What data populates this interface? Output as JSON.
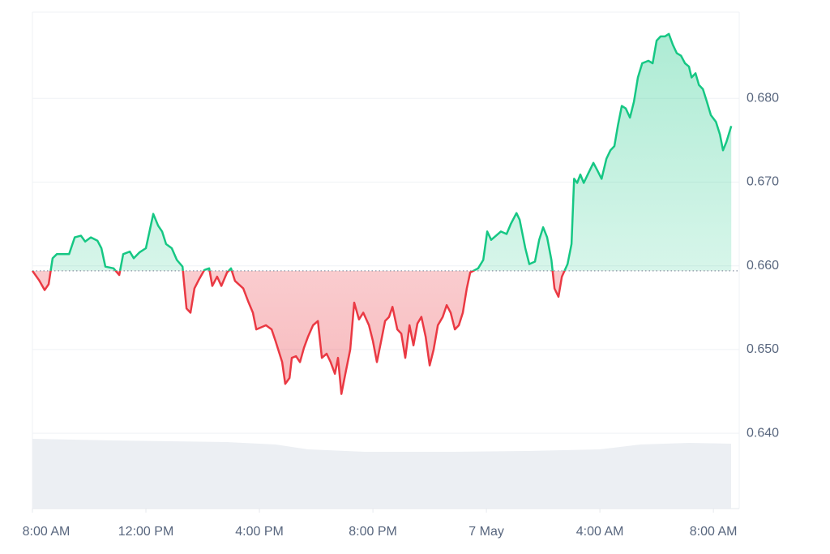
{
  "chart_data": {
    "type": "line",
    "xlim": [
      0,
      24.91
    ],
    "ylim": [
      0.631,
      0.6903
    ],
    "xticks": [
      {
        "value": 0,
        "label": "8:00 AM"
      },
      {
        "value": 4,
        "label": "12:00 PM"
      },
      {
        "value": 8,
        "label": "4:00 PM"
      },
      {
        "value": 12,
        "label": "8:00 PM"
      },
      {
        "value": 16,
        "label": "7 May"
      },
      {
        "value": 20,
        "label": "4:00 AM"
      },
      {
        "value": 24,
        "label": "8:00 AM"
      }
    ],
    "yticks": [
      {
        "value": 0.64,
        "label": "0.640"
      },
      {
        "value": 0.65,
        "label": "0.650"
      },
      {
        "value": 0.66,
        "label": "0.660"
      },
      {
        "value": 0.67,
        "label": "0.670"
      },
      {
        "value": 0.68,
        "label": "0.680"
      }
    ],
    "grid": true,
    "baseline": 0.6594,
    "up_color": "#16c784",
    "down_color": "#ea3943",
    "x": [
      0,
      0.23,
      0.43,
      0.57,
      0.71,
      0.86,
      1.29,
      1.49,
      1.71,
      1.86,
      2.06,
      2.29,
      2.43,
      2.57,
      2.86,
      3.06,
      3.2,
      3.43,
      3.57,
      3.77,
      4,
      4.14,
      4.26,
      4.43,
      4.57,
      4.71,
      4.91,
      5.09,
      5.29,
      5.43,
      5.57,
      5.71,
      5.86,
      6.06,
      6.23,
      6.34,
      6.51,
      6.66,
      6.86,
      7,
      7.14,
      7.43,
      7.6,
      7.77,
      7.89,
      8.23,
      8.43,
      8.57,
      8.8,
      8.91,
      9.06,
      9.14,
      9.29,
      9.43,
      9.57,
      9.71,
      9.89,
      10.06,
      10.2,
      10.37,
      10.51,
      10.66,
      10.77,
      10.89,
      11.03,
      11.2,
      11.34,
      11.51,
      11.66,
      11.86,
      12,
      12.14,
      12.29,
      12.43,
      12.57,
      12.69,
      12.86,
      13,
      13.14,
      13.29,
      13.43,
      13.57,
      13.71,
      13.86,
      14,
      14.14,
      14.29,
      14.46,
      14.6,
      14.74,
      14.89,
      15.03,
      15.17,
      15.31,
      15.43,
      15.71,
      15.89,
      16.03,
      16.17,
      16.34,
      16.51,
      16.71,
      16.86,
      17.06,
      17.17,
      17.37,
      17.51,
      17.71,
      17.86,
      18,
      18.14,
      18.29,
      18.4,
      18.54,
      18.66,
      18.86,
      19,
      19.09,
      19.2,
      19.31,
      19.43,
      19.57,
      19.77,
      19.91,
      20.06,
      20.23,
      20.37,
      20.51,
      20.63,
      20.77,
      20.91,
      21.06,
      21.2,
      21.34,
      21.49,
      21.71,
      21.86,
      22,
      22.14,
      22.29,
      22.43,
      22.57,
      22.71,
      22.86,
      23,
      23.14,
      23.23,
      23.37,
      23.49,
      23.63,
      23.77,
      23.91,
      24.09,
      24.23,
      24.34,
      24.46,
      24.63
    ],
    "values": [
      0.6594,
      0.6583,
      0.6571,
      0.6578,
      0.6609,
      0.6614,
      0.6614,
      0.6634,
      0.6636,
      0.6629,
      0.6634,
      0.663,
      0.6621,
      0.6599,
      0.6597,
      0.6589,
      0.6614,
      0.6617,
      0.6609,
      0.6616,
      0.6621,
      0.6643,
      0.6662,
      0.6648,
      0.6641,
      0.6626,
      0.6621,
      0.6607,
      0.6599,
      0.6549,
      0.6544,
      0.6573,
      0.6583,
      0.6595,
      0.6597,
      0.6576,
      0.6587,
      0.6576,
      0.6592,
      0.6597,
      0.6582,
      0.6573,
      0.6558,
      0.6544,
      0.6524,
      0.6529,
      0.6524,
      0.651,
      0.6485,
      0.6459,
      0.6466,
      0.649,
      0.6492,
      0.6485,
      0.6502,
      0.6515,
      0.6529,
      0.6534,
      0.649,
      0.6495,
      0.6485,
      0.6471,
      0.649,
      0.6447,
      0.6471,
      0.65,
      0.6556,
      0.6536,
      0.6544,
      0.6529,
      0.651,
      0.6485,
      0.651,
      0.6534,
      0.6539,
      0.6551,
      0.6524,
      0.6519,
      0.649,
      0.6529,
      0.6505,
      0.6531,
      0.6539,
      0.6515,
      0.6481,
      0.65,
      0.6529,
      0.6539,
      0.6553,
      0.6544,
      0.6524,
      0.6529,
      0.6544,
      0.6573,
      0.6592,
      0.6597,
      0.6607,
      0.6641,
      0.6631,
      0.6636,
      0.6641,
      0.6638,
      0.665,
      0.6663,
      0.6655,
      0.6621,
      0.6602,
      0.6605,
      0.6631,
      0.6646,
      0.6634,
      0.6607,
      0.6573,
      0.6563,
      0.6587,
      0.6602,
      0.6626,
      0.6704,
      0.6699,
      0.6709,
      0.6699,
      0.6709,
      0.6723,
      0.6714,
      0.6704,
      0.6728,
      0.6738,
      0.6743,
      0.6767,
      0.6791,
      0.6788,
      0.6777,
      0.6796,
      0.6825,
      0.6842,
      0.6845,
      0.6842,
      0.6869,
      0.6874,
      0.6874,
      0.6877,
      0.6864,
      0.6854,
      0.6851,
      0.6842,
      0.6838,
      0.6825,
      0.683,
      0.6816,
      0.6811,
      0.6796,
      0.678,
      0.6772,
      0.6757,
      0.6738,
      0.6748,
      0.6767
    ]
  }
}
